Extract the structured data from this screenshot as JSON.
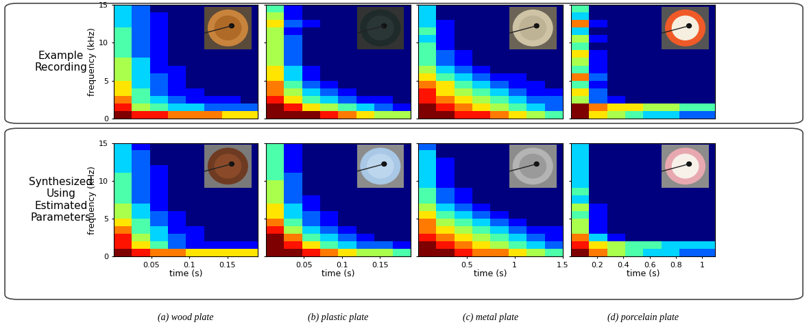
{
  "row_labels": [
    "Example Recording",
    "Synthesized Using Estimated Parameters"
  ],
  "captions": [
    "(a) wood plate",
    "(b) plastic plate",
    "(c) metal plate",
    "(d) porcelain plate"
  ],
  "chart_data": [
    {
      "type": "heatmap",
      "ylabel": "frequency (kHz)",
      "xlim": [
        0,
        0.19
      ],
      "ylim": [
        0,
        15
      ],
      "yticks": [
        0,
        5,
        10,
        15
      ],
      "tick_labels": "y",
      "cells": [
        [
          9,
          8,
          8,
          7,
          7,
          7,
          6,
          6
        ],
        [
          8,
          5,
          4,
          3,
          3,
          2,
          2,
          2
        ],
        [
          7,
          4,
          3,
          2,
          1,
          1,
          1,
          0
        ],
        [
          6,
          4,
          2,
          1,
          1,
          0,
          0,
          0
        ],
        [
          6,
          3,
          2,
          1,
          0,
          0,
          0,
          0
        ],
        [
          5,
          3,
          2,
          1,
          0,
          0,
          0,
          0
        ],
        [
          5,
          3,
          1,
          1,
          0,
          0,
          0,
          0
        ],
        [
          5,
          3,
          1,
          0,
          0,
          0,
          0,
          0
        ],
        [
          4,
          2,
          1,
          0,
          0,
          0,
          0,
          0
        ],
        [
          4,
          2,
          1,
          0,
          0,
          0,
          0,
          0
        ],
        [
          4,
          2,
          1,
          0,
          0,
          0,
          0,
          0
        ],
        [
          4,
          2,
          1,
          0,
          0,
          0,
          0,
          0
        ],
        [
          3,
          2,
          1,
          0,
          0,
          0,
          0,
          0
        ],
        [
          3,
          2,
          1,
          0,
          0,
          0,
          0,
          0
        ],
        [
          3,
          2,
          0,
          0,
          0,
          0,
          0,
          0
        ]
      ]
    },
    {
      "type": "heatmap",
      "xlim": [
        0,
        0.19
      ],
      "ylim": [
        0,
        15
      ],
      "yticks": [
        0,
        5,
        10,
        15
      ],
      "tick_labels": false,
      "cells": [
        [
          9,
          9,
          9,
          8,
          7,
          6,
          5,
          5
        ],
        [
          9,
          8,
          6,
          5,
          4,
          3,
          2,
          1
        ],
        [
          8,
          6,
          4,
          3,
          2,
          1,
          1,
          0
        ],
        [
          7,
          5,
          3,
          2,
          1,
          0,
          0,
          0
        ],
        [
          7,
          4,
          2,
          1,
          0,
          0,
          0,
          0
        ],
        [
          6,
          3,
          1,
          0,
          0,
          0,
          0,
          0
        ],
        [
          6,
          3,
          1,
          0,
          0,
          0,
          0,
          0
        ],
        [
          5,
          2,
          0,
          0,
          0,
          0,
          0,
          0
        ],
        [
          5,
          2,
          0,
          0,
          0,
          0,
          0,
          0
        ],
        [
          5,
          2,
          0,
          0,
          0,
          0,
          0,
          0
        ],
        [
          5,
          2,
          0,
          0,
          0,
          0,
          0,
          0
        ],
        [
          5,
          1,
          0,
          0,
          0,
          0,
          0,
          0
        ],
        [
          6,
          2,
          1,
          0,
          0,
          0,
          0,
          0
        ],
        [
          5,
          1,
          0,
          0,
          0,
          0,
          0,
          0
        ],
        [
          4,
          1,
          0,
          0,
          0,
          0,
          0,
          0
        ]
      ]
    },
    {
      "type": "heatmap",
      "xlim": [
        0,
        1.5
      ],
      "ylim": [
        0,
        15
      ],
      "yticks": [
        0,
        5,
        10,
        15
      ],
      "tick_labels": false,
      "cells": [
        [
          9,
          9,
          8,
          8,
          7,
          6,
          5,
          4
        ],
        [
          9,
          8,
          7,
          6,
          5,
          4,
          3,
          2
        ],
        [
          8,
          7,
          6,
          5,
          4,
          3,
          2,
          2
        ],
        [
          8,
          6,
          5,
          4,
          3,
          2,
          1,
          1
        ],
        [
          7,
          6,
          4,
          3,
          2,
          1,
          1,
          0
        ],
        [
          6,
          4,
          3,
          2,
          1,
          1,
          0,
          0
        ],
        [
          5,
          3,
          2,
          1,
          0,
          0,
          0,
          0
        ],
        [
          4,
          2,
          1,
          0,
          0,
          0,
          0,
          0
        ],
        [
          4,
          2,
          1,
          0,
          0,
          0,
          0,
          0
        ],
        [
          4,
          1,
          0,
          0,
          0,
          0,
          0,
          0
        ],
        [
          3,
          1,
          0,
          0,
          0,
          0,
          0,
          0
        ],
        [
          4,
          1,
          0,
          0,
          0,
          0,
          0,
          0
        ],
        [
          3,
          1,
          0,
          0,
          0,
          0,
          0,
          0
        ],
        [
          3,
          0,
          0,
          0,
          0,
          0,
          0,
          0
        ],
        [
          3,
          0,
          0,
          0,
          0,
          0,
          0,
          0
        ]
      ]
    },
    {
      "type": "heatmap",
      "xlim": [
        0,
        1.1
      ],
      "ylim": [
        0,
        15
      ],
      "yticks": [
        0,
        5,
        10,
        15
      ],
      "tick_labels": false,
      "cells": [
        [
          9,
          6,
          5,
          4,
          3,
          3,
          2,
          2
        ],
        [
          9,
          7,
          6,
          6,
          5,
          5,
          4,
          4
        ],
        [
          5,
          2,
          1,
          0,
          0,
          0,
          0,
          0
        ],
        [
          6,
          2,
          0,
          0,
          0,
          0,
          0,
          0
        ],
        [
          4,
          1,
          0,
          0,
          0,
          0,
          0,
          0
        ],
        [
          7,
          2,
          0,
          0,
          0,
          0,
          0,
          0
        ],
        [
          4,
          1,
          0,
          0,
          0,
          0,
          0,
          0
        ],
        [
          5,
          1,
          0,
          0,
          0,
          0,
          0,
          0
        ],
        [
          6,
          1,
          0,
          0,
          0,
          0,
          0,
          0
        ],
        [
          4,
          0,
          0,
          0,
          0,
          0,
          0,
          0
        ],
        [
          5,
          1,
          0,
          0,
          0,
          0,
          0,
          0
        ],
        [
          3,
          0,
          0,
          0,
          0,
          0,
          0,
          0
        ],
        [
          7,
          1,
          0,
          0,
          0,
          0,
          0,
          0
        ],
        [
          3,
          0,
          0,
          0,
          0,
          0,
          0,
          0
        ],
        [
          4,
          0,
          0,
          0,
          0,
          0,
          0,
          0
        ]
      ]
    },
    {
      "type": "heatmap",
      "xlabel": "time (s)",
      "ylabel": "frequency (kHz)",
      "xlim": [
        0,
        0.19
      ],
      "ylim": [
        0,
        15
      ],
      "xticks": [
        0.05,
        0.1,
        0.15
      ],
      "yticks": [
        0,
        5,
        10,
        15
      ],
      "cells": [
        [
          9,
          8,
          7,
          7,
          6,
          6,
          6,
          6
        ],
        [
          8,
          6,
          4,
          2,
          1,
          1,
          1,
          1
        ],
        [
          8,
          5,
          3,
          2,
          1,
          0,
          0,
          0
        ],
        [
          7,
          4,
          3,
          1,
          1,
          0,
          0,
          0
        ],
        [
          6,
          4,
          2,
          1,
          0,
          0,
          0,
          0
        ],
        [
          5,
          3,
          2,
          1,
          0,
          0,
          0,
          0
        ],
        [
          5,
          3,
          1,
          0,
          0,
          0,
          0,
          0
        ],
        [
          4,
          2,
          1,
          0,
          0,
          0,
          0,
          0
        ],
        [
          4,
          2,
          1,
          0,
          0,
          0,
          0,
          0
        ],
        [
          4,
          2,
          1,
          0,
          0,
          0,
          0,
          0
        ],
        [
          4,
          2,
          1,
          0,
          0,
          0,
          0,
          0
        ],
        [
          3,
          2,
          1,
          0,
          0,
          0,
          0,
          0
        ],
        [
          3,
          2,
          0,
          0,
          0,
          0,
          0,
          0
        ],
        [
          3,
          2,
          0,
          0,
          0,
          0,
          0,
          0
        ],
        [
          3,
          1,
          0,
          0,
          0,
          0,
          0,
          0
        ]
      ]
    },
    {
      "type": "heatmap",
      "xlabel": "time (s)",
      "xlim": [
        0,
        0.19
      ],
      "ylim": [
        0,
        15
      ],
      "xticks": [
        0.05,
        0.1,
        0.15
      ],
      "yticks": [
        0,
        5,
        10,
        15
      ],
      "tick_labels": "x",
      "cells": [
        [
          9,
          9,
          8,
          7,
          6,
          5,
          5,
          4
        ],
        [
          9,
          8,
          6,
          4,
          3,
          2,
          2,
          1
        ],
        [
          9,
          7,
          4,
          3,
          2,
          1,
          0,
          0
        ],
        [
          8,
          5,
          3,
          2,
          1,
          0,
          0,
          0
        ],
        [
          7,
          4,
          2,
          1,
          0,
          0,
          0,
          0
        ],
        [
          6,
          3,
          2,
          1,
          0,
          0,
          0,
          0
        ],
        [
          6,
          3,
          1,
          0,
          0,
          0,
          0,
          0
        ],
        [
          5,
          2,
          1,
          0,
          0,
          0,
          0,
          0
        ],
        [
          5,
          2,
          0,
          0,
          0,
          0,
          0,
          0
        ],
        [
          5,
          2,
          0,
          0,
          0,
          0,
          0,
          0
        ],
        [
          4,
          2,
          0,
          0,
          0,
          0,
          0,
          0
        ],
        [
          4,
          1,
          0,
          0,
          0,
          0,
          0,
          0
        ],
        [
          4,
          1,
          0,
          0,
          0,
          0,
          0,
          0
        ],
        [
          4,
          1,
          0,
          0,
          0,
          0,
          0,
          0
        ],
        [
          4,
          1,
          0,
          0,
          0,
          0,
          0,
          0
        ]
      ]
    },
    {
      "type": "heatmap",
      "xlabel": "time (s)",
      "xlim": [
        0,
        1.5
      ],
      "ylim": [
        0,
        15
      ],
      "xticks": [
        0.5,
        1,
        1.5
      ],
      "yticks": [
        0,
        5,
        10,
        15
      ],
      "tick_labels": "x",
      "cells": [
        [
          9,
          9,
          8,
          7,
          7,
          6,
          5,
          4
        ],
        [
          9,
          8,
          7,
          6,
          5,
          4,
          3,
          2
        ],
        [
          8,
          7,
          6,
          5,
          4,
          3,
          2,
          1
        ],
        [
          7,
          6,
          5,
          4,
          3,
          2,
          1,
          1
        ],
        [
          7,
          5,
          4,
          3,
          2,
          1,
          0,
          0
        ],
        [
          6,
          4,
          3,
          2,
          1,
          0,
          0,
          0
        ],
        [
          5,
          3,
          2,
          1,
          0,
          0,
          0,
          0
        ],
        [
          4,
          2,
          1,
          0,
          0,
          0,
          0,
          0
        ],
        [
          4,
          2,
          1,
          0,
          0,
          0,
          0,
          0
        ],
        [
          3,
          1,
          0,
          0,
          0,
          0,
          0,
          0
        ],
        [
          3,
          1,
          0,
          0,
          0,
          0,
          0,
          0
        ],
        [
          3,
          1,
          0,
          0,
          0,
          0,
          0,
          0
        ],
        [
          3,
          1,
          0,
          0,
          0,
          0,
          0,
          0
        ],
        [
          3,
          0,
          0,
          0,
          0,
          0,
          0,
          0
        ],
        [
          2,
          0,
          0,
          0,
          0,
          0,
          0,
          0
        ]
      ]
    },
    {
      "type": "heatmap",
      "xlabel": "time (s)",
      "xlim": [
        0,
        1.1
      ],
      "ylim": [
        0,
        15
      ],
      "xticks": [
        0.2,
        0.4,
        0.6,
        0.8,
        1
      ],
      "yticks": [
        0,
        5,
        10,
        15
      ],
      "tick_labels": "x",
      "cells": [
        [
          9,
          7,
          5,
          4,
          3,
          3,
          2,
          2
        ],
        [
          8,
          6,
          5,
          4,
          4,
          3,
          3,
          3
        ],
        [
          7,
          3,
          1,
          0,
          0,
          0,
          0,
          0
        ],
        [
          5,
          1,
          0,
          0,
          0,
          0,
          0,
          0
        ],
        [
          5,
          1,
          0,
          0,
          0,
          0,
          0,
          0
        ],
        [
          4,
          1,
          0,
          0,
          0,
          0,
          0,
          0
        ],
        [
          5,
          1,
          0,
          0,
          0,
          0,
          0,
          0
        ],
        [
          3,
          0,
          0,
          0,
          0,
          0,
          0,
          0
        ],
        [
          4,
          0,
          0,
          0,
          0,
          0,
          0,
          0
        ],
        [
          3,
          0,
          0,
          0,
          0,
          0,
          0,
          0
        ],
        [
          3,
          0,
          0,
          0,
          0,
          0,
          0,
          0
        ],
        [
          3,
          0,
          0,
          0,
          0,
          0,
          0,
          0
        ],
        [
          3,
          0,
          0,
          0,
          0,
          0,
          0,
          0
        ],
        [
          3,
          0,
          0,
          0,
          0,
          0,
          0,
          0
        ],
        [
          3,
          0,
          0,
          0,
          0,
          0,
          0,
          0
        ]
      ]
    }
  ]
}
